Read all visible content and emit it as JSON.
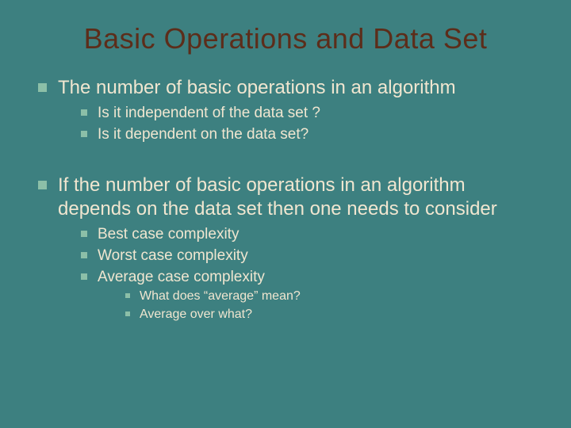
{
  "slide": {
    "background_color": "#3d8080",
    "title_color": "#5c2d1a",
    "text_color": "#f0e6d0",
    "bullet_color": "#8cbfa8",
    "title_fontsize": 36,
    "l1_fontsize": 24,
    "l2_fontsize": 19,
    "l3_fontsize": 16,
    "title": "Basic Operations and Data Set",
    "bullets": [
      {
        "level": 1,
        "text": "The number of basic operations in an algorithm"
      },
      {
        "level": 2,
        "text": "Is it independent of the data set ?"
      },
      {
        "level": 2,
        "text": "Is it dependent on the data set?"
      },
      {
        "level": 1,
        "text": "If the number of basic operations in an algorithm depends on the data set then one needs to consider"
      },
      {
        "level": 2,
        "text": "Best case complexity"
      },
      {
        "level": 2,
        "text": "Worst case complexity"
      },
      {
        "level": 2,
        "text": "Average case complexity"
      },
      {
        "level": 3,
        "text": "What does “average” mean?"
      },
      {
        "level": 3,
        "text": "Average over what?"
      }
    ]
  }
}
